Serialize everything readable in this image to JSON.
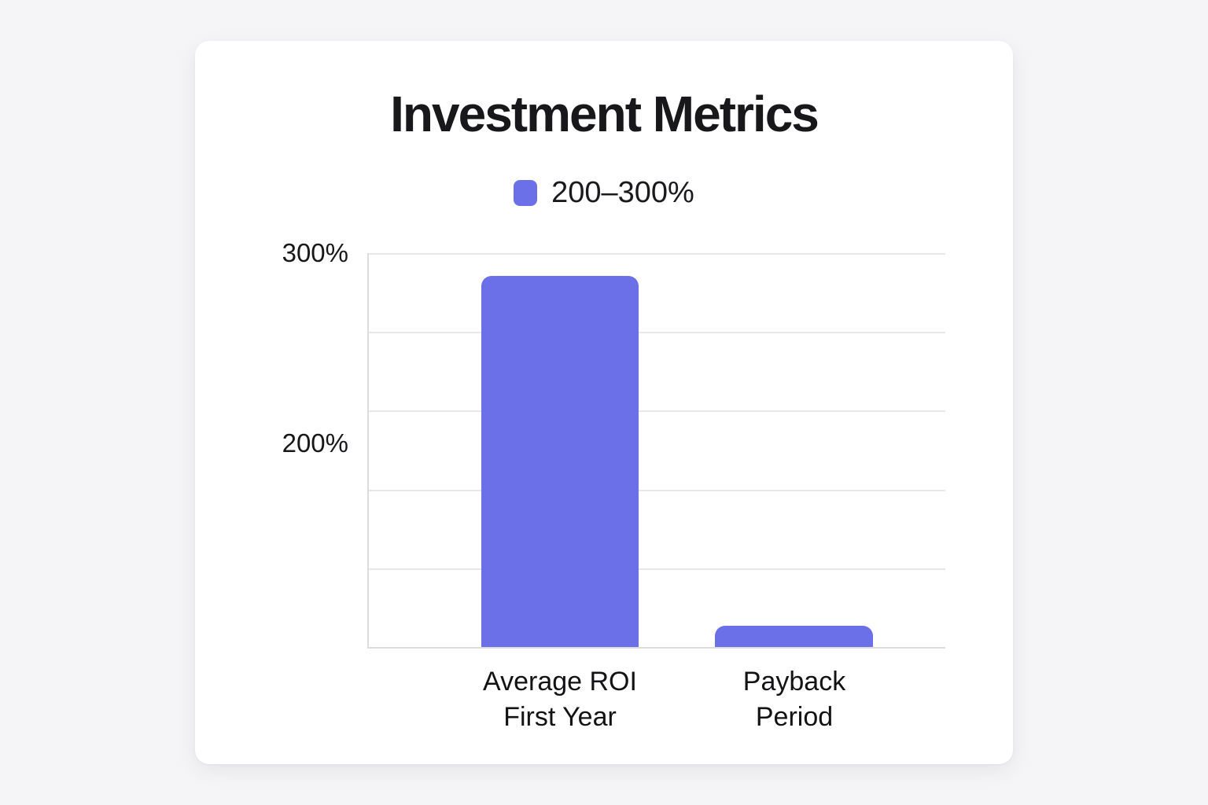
{
  "page": {
    "background_color": "#f5f5f7",
    "card_color": "#ffffff"
  },
  "chart_data": {
    "type": "bar",
    "title": "Investment Metrics",
    "legend": [
      {
        "label": "200–300%",
        "color": "#6b70e8"
      }
    ],
    "legend_position": "top",
    "grid": true,
    "grid_divisions": 5,
    "ylim": [
      93,
      300
    ],
    "yticks": [
      {
        "label": "300%",
        "value": 300
      },
      {
        "label": "200%",
        "value": 200
      }
    ],
    "categories": [
      {
        "lines": [
          "Average ROI",
          "First Year"
        ]
      },
      {
        "lines": [
          "Payback",
          "Period"
        ]
      }
    ],
    "series": [
      {
        "name": "200–300%",
        "color": "#6b70e8",
        "values": [
          288,
          104
        ]
      }
    ],
    "xlabel": "",
    "ylabel": ""
  }
}
